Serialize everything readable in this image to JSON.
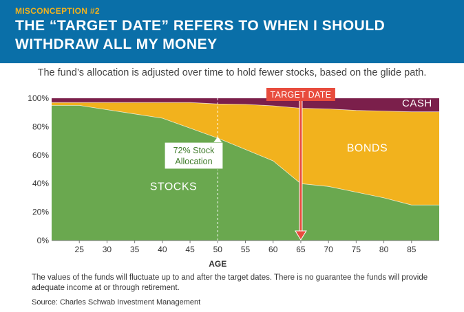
{
  "header": {
    "eyebrow": "MISCONCEPTION #2",
    "headline": "THE “TARGET DATE” REFERS TO WHEN I SHOULD WITHDRAW ALL MY MONEY"
  },
  "subtitle": "The fund’s allocation is adjusted over time to hold fewer stocks, based on the glide path.",
  "colors": {
    "stocks": "#6aa84f",
    "bonds": "#f2b21d",
    "cash": "#7b1f4b",
    "target": "#e84c3d",
    "header": "#0a6fa8",
    "eyebrow": "#f2b21d"
  },
  "chart_data": {
    "type": "area",
    "stacked": true,
    "xlabel": "AGE",
    "xlim": [
      20,
      90
    ],
    "ylim": [
      0,
      100
    ],
    "x_ticks": [
      25,
      30,
      35,
      40,
      45,
      50,
      55,
      60,
      65,
      70,
      75,
      80,
      85
    ],
    "y_ticks": [
      0,
      20,
      40,
      60,
      80,
      100
    ],
    "y_tick_labels": [
      "0%",
      "20%",
      "40%",
      "60%",
      "80%",
      "100%"
    ],
    "x": [
      20,
      25,
      30,
      35,
      40,
      45,
      50,
      55,
      60,
      65,
      70,
      75,
      80,
      85,
      90
    ],
    "series": [
      {
        "name": "STOCKS",
        "values": [
          95,
          95,
          92,
          89,
          86,
          79,
          72,
          64,
          56,
          40,
          38,
          34,
          30,
          25,
          25
        ]
      },
      {
        "name": "BONDS",
        "values": [
          2,
          2,
          5,
          8,
          11,
          18,
          24,
          31.7,
          38.7,
          53,
          54.5,
          57.5,
          61,
          65.5,
          65.5
        ]
      },
      {
        "name": "CASH",
        "values": [
          3,
          3,
          3,
          3,
          3,
          3,
          4,
          4.3,
          5.3,
          7,
          7.5,
          8.5,
          9,
          9.5,
          9.5
        ]
      }
    ],
    "annotations": [
      {
        "text": "TARGET DATE",
        "x": 65,
        "type": "arrow"
      },
      {
        "text_line1": "72% Stock",
        "text_line2": "Allocation",
        "x": 50,
        "y": 72,
        "type": "dashed-line"
      }
    ]
  },
  "footnote": "The values of the funds will fluctuate up to and after the target dates. There is no guarantee the funds will provide adequate income at or through retirement.",
  "source": "Source: Charles Schwab Investment Management"
}
